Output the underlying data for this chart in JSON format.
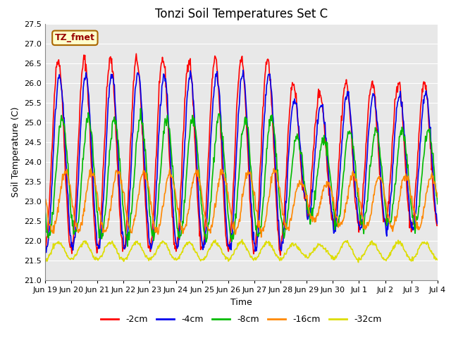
{
  "title": "Tonzi Soil Temperatures Set C",
  "xlabel": "Time",
  "ylabel": "Soil Temperature (C)",
  "ylim": [
    21.0,
    27.5
  ],
  "annotation_text": "TZ_fmet",
  "annotation_bbox_facecolor": "#ffffcc",
  "annotation_bbox_edgecolor": "#aa6600",
  "bg_color": "#ffffff",
  "plot_bg_color": "#e8e8e8",
  "grid_color": "#ffffff",
  "legend_labels": [
    "-2cm",
    "-4cm",
    "-8cm",
    "-16cm",
    "-32cm"
  ],
  "line_colors": [
    "#ff0000",
    "#0000ee",
    "#00bb00",
    "#ff8800",
    "#dddd00"
  ],
  "line_widths": [
    1.2,
    1.2,
    1.2,
    1.2,
    1.2
  ],
  "x_tick_labels": [
    "Jun 19",
    "Jun 20",
    "Jun 21",
    "Jun 22",
    "Jun 23",
    "Jun 24",
    "Jun 25",
    "Jun 26",
    "Jun 27",
    "Jun 28",
    "Jun 29",
    "Jun 30",
    "Jul 1",
    "Jul 2",
    "Jul 3",
    "Jul 4"
  ],
  "y_ticks": [
    21.0,
    21.5,
    22.0,
    22.5,
    23.0,
    23.5,
    24.0,
    24.5,
    25.0,
    25.5,
    26.0,
    26.5,
    27.0,
    27.5
  ],
  "num_points": 720,
  "start_day": 0,
  "end_day": 15,
  "period": 1.0,
  "amplitudes_early": [
    2.4,
    2.2,
    1.5,
    0.75,
    0.22
  ],
  "amplitudes_late": [
    1.8,
    1.7,
    1.2,
    0.65,
    0.22
  ],
  "means": [
    24.2,
    24.0,
    23.6,
    23.0,
    21.75
  ],
  "phase_shifts": [
    0.0,
    0.05,
    0.15,
    0.28,
    0.0
  ],
  "noise_scales": [
    0.08,
    0.07,
    0.08,
    0.06,
    0.025
  ],
  "title_fontsize": 12,
  "label_fontsize": 9,
  "tick_fontsize": 8
}
